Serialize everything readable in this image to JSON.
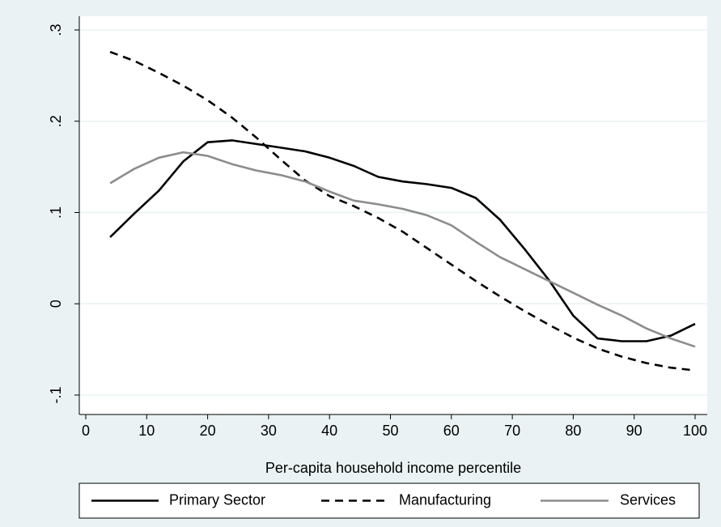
{
  "chart_data": {
    "type": "line",
    "title": "",
    "xlabel": "Per-capita household income percentile",
    "ylabel": "",
    "xlim": [
      -2,
      102
    ],
    "ylim": [
      -0.1,
      0.3
    ],
    "xticks": [
      0,
      10,
      20,
      30,
      40,
      50,
      60,
      70,
      80,
      90,
      100
    ],
    "xtick_labels": [
      "0",
      "10",
      "20",
      "30",
      "40",
      "50",
      "60",
      "70",
      "80",
      "90",
      "100"
    ],
    "yticks": [
      -0.1,
      0,
      0.1,
      0.2,
      0.3
    ],
    "ytick_labels": [
      "-.1",
      "0",
      ".1",
      ".2",
      ".3"
    ],
    "grid": true,
    "legend_position": "bottom",
    "x": [
      4,
      8,
      12,
      16,
      20,
      24,
      28,
      32,
      36,
      40,
      44,
      48,
      52,
      56,
      60,
      64,
      68,
      72,
      76,
      80,
      84,
      88,
      92,
      96,
      100
    ],
    "series": [
      {
        "name": "Primary Sector",
        "color": "#000000",
        "dash": "solid",
        "values": [
          0.073,
          0.099,
          0.124,
          0.156,
          0.177,
          0.179,
          0.175,
          0.171,
          0.167,
          0.16,
          0.151,
          0.139,
          0.134,
          0.131,
          0.127,
          0.116,
          0.092,
          0.06,
          0.026,
          -0.013,
          -0.038,
          -0.041,
          -0.041,
          -0.035,
          -0.022
        ]
      },
      {
        "name": "Manufacturing",
        "color": "#000000",
        "dash": "dashed",
        "values": [
          0.276,
          0.266,
          0.253,
          0.239,
          0.223,
          0.204,
          0.182,
          0.158,
          0.135,
          0.118,
          0.107,
          0.094,
          0.079,
          0.061,
          0.043,
          0.025,
          0.008,
          -0.008,
          -0.023,
          -0.037,
          -0.049,
          -0.058,
          -0.065,
          -0.07,
          -0.073
        ]
      },
      {
        "name": "Services",
        "color": "#8c8c8c",
        "dash": "solid",
        "values": [
          0.132,
          0.148,
          0.16,
          0.166,
          0.162,
          0.153,
          0.146,
          0.141,
          0.134,
          0.123,
          0.113,
          0.109,
          0.104,
          0.097,
          0.086,
          0.068,
          0.051,
          0.038,
          0.025,
          0.012,
          -0.001,
          -0.013,
          -0.027,
          -0.038,
          -0.047
        ]
      }
    ]
  }
}
